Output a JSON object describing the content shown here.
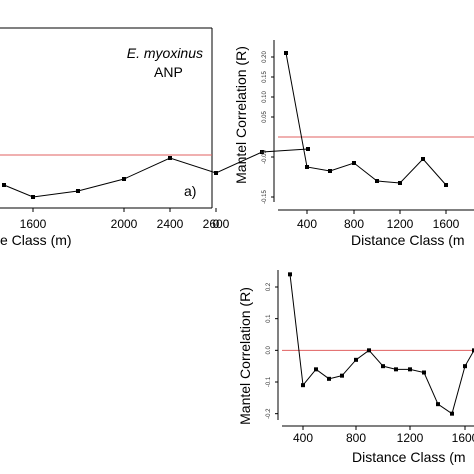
{
  "chart_data": [
    {
      "type": "line",
      "annotation_species": "E. myoxinus",
      "annotation_site": "ANP",
      "panel_label": "a)",
      "xlabel": "e Class (m)",
      "x_ticks": [
        "1600",
        "2000",
        "2400",
        "2600"
      ],
      "x": [
        1300,
        1600,
        1800,
        2000,
        2200,
        2400,
        2600,
        2800
      ],
      "values": [
        -0.1,
        -0.14,
        -0.12,
        -0.08,
        -0.01,
        -0.06,
        0.01,
        0.02
      ],
      "reference_line": 0,
      "extra_tick": "0"
    },
    {
      "type": "line",
      "xlabel": "Distance Class (m",
      "ylabel": "Mantel Correlation (R)",
      "x_ticks": [
        "400",
        "800",
        "1200",
        "1600"
      ],
      "y_ticks": [
        "-0.15",
        "-0.05",
        "0.05",
        "0.10",
        "0.15",
        "0.20"
      ],
      "x": [
        200,
        400,
        600,
        800,
        1000,
        1200,
        1400,
        1600
      ],
      "values": [
        0.21,
        -0.075,
        -0.085,
        -0.065,
        -0.11,
        -0.115,
        -0.055,
        -0.12
      ],
      "ylim": [
        -0.15,
        0.23
      ],
      "reference_line": 0
    },
    {
      "type": "line",
      "xlabel": "Distance Class (m",
      "ylabel": "Mantel Correlation (R)",
      "x_ticks": [
        "400",
        "800",
        "1200",
        "1600"
      ],
      "y_ticks": [
        "-0.2",
        "-0.1",
        "0.0",
        "0.1",
        "0.2"
      ],
      "x": [
        300,
        400,
        500,
        600,
        700,
        800,
        900,
        1000,
        1100,
        1200,
        1300,
        1400,
        1500,
        1600,
        1700
      ],
      "values": [
        0.24,
        -0.11,
        -0.06,
        -0.09,
        -0.08,
        -0.03,
        0.0,
        -0.05,
        -0.06,
        -0.06,
        -0.07,
        -0.17,
        -0.2,
        -0.05,
        0.0
      ],
      "ylim": [
        -0.22,
        0.26
      ],
      "reference_line": 0
    }
  ]
}
